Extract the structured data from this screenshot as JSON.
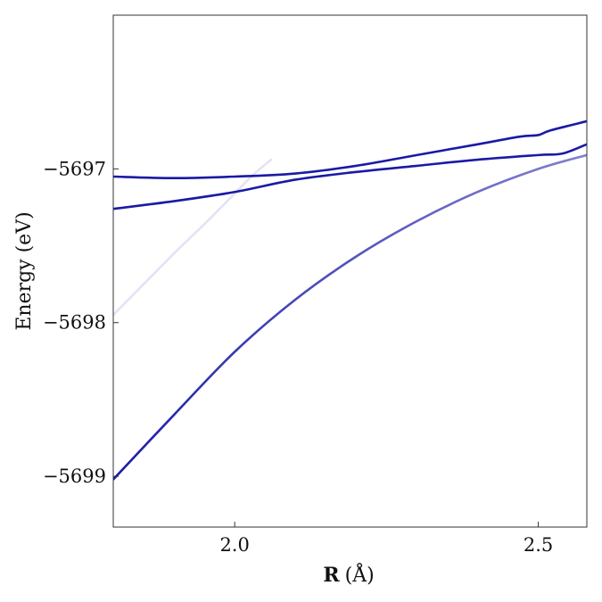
{
  "chart_data": {
    "type": "line",
    "title": "",
    "xlabel": "R (Å)",
    "xlabel_bold": "R",
    "xlabel_unit": "(Å)",
    "ylabel": "Energy (eV)",
    "xlim": [
      1.8,
      2.58
    ],
    "ylim": [
      -5699.33,
      -5696.0
    ],
    "xticks": [
      2.0,
      2.5
    ],
    "xtick_labels": [
      "2.0",
      "2.5"
    ],
    "yticks": [
      -5697,
      -5698,
      -5699
    ],
    "ytick_labels": [
      "−5697",
      "−5698",
      "−5699"
    ],
    "grid": false,
    "legend": "none",
    "series": [
      {
        "color": "#1a1aa6",
        "opacity": 1.0,
        "x": [
          1.8,
          1.9,
          2.0,
          2.1,
          2.2,
          2.3,
          2.4,
          2.47,
          2.5,
          2.52,
          2.58
        ],
        "y": [
          -5697.05,
          -5697.06,
          -5697.05,
          -5697.03,
          -5696.98,
          -5696.91,
          -5696.84,
          -5696.79,
          -5696.78,
          -5696.75,
          -5696.69
        ]
      },
      {
        "color": "#1a1aa6",
        "opacity": 1.0,
        "x": [
          1.8,
          1.9,
          2.0,
          2.1,
          2.2,
          2.3,
          2.4,
          2.5,
          2.54,
          2.58
        ],
        "y": [
          -5697.26,
          -5697.21,
          -5697.15,
          -5697.07,
          -5697.02,
          -5696.98,
          -5696.94,
          -5696.91,
          -5696.9,
          -5696.84
        ]
      },
      {
        "color": "#1a1aa6",
        "opacity": 1.0,
        "fade_to": 0.55,
        "x": [
          1.8,
          1.9,
          2.0,
          2.1,
          2.2,
          2.3,
          2.4,
          2.5,
          2.58
        ],
        "y": [
          -5699.02,
          -5698.6,
          -5698.19,
          -5697.85,
          -5697.57,
          -5697.34,
          -5697.15,
          -5697.0,
          -5696.91
        ]
      },
      {
        "color": "#1a1aa6",
        "opacity": 0.12,
        "x": [
          1.8,
          1.9,
          1.95,
          2.0,
          2.03,
          2.06
        ],
        "y": [
          -5697.95,
          -5697.55,
          -5697.36,
          -5697.16,
          -5697.04,
          -5696.94
        ]
      }
    ]
  }
}
